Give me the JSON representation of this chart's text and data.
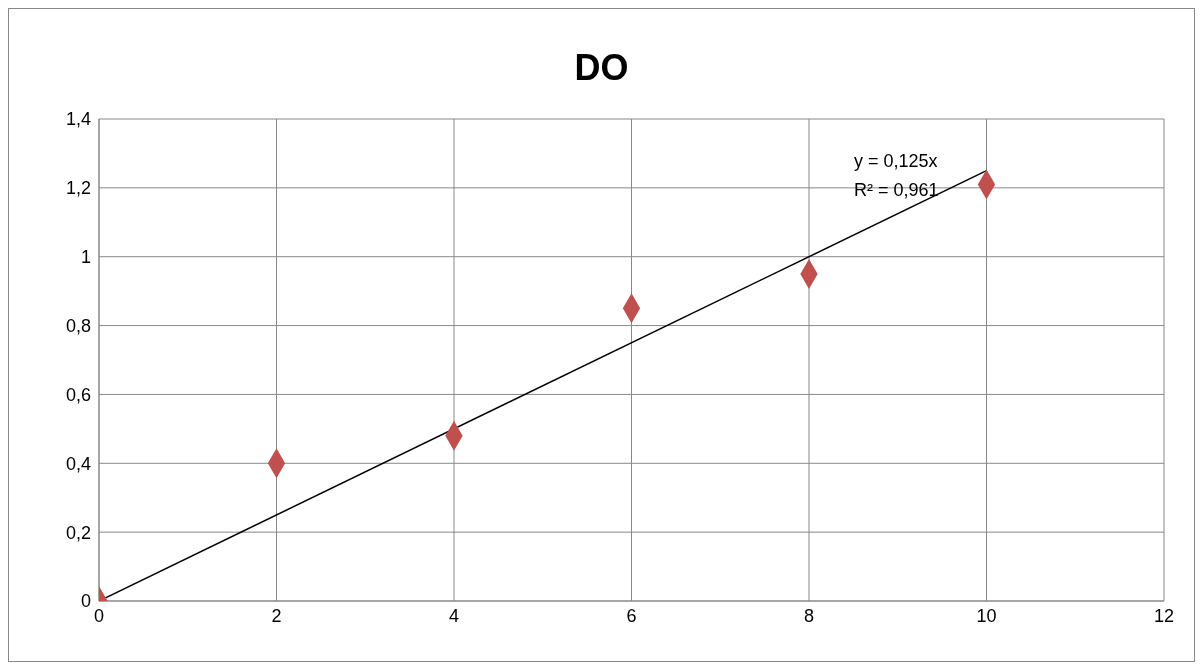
{
  "chart_data": {
    "type": "scatter",
    "title": "DO",
    "series": [
      {
        "color": "#c0504d",
        "marker": "diamond",
        "x": [
          0,
          2,
          4,
          6,
          8,
          10
        ],
        "values": [
          0,
          0.4,
          0.48,
          0.85,
          0.95,
          1.21
        ]
      },
      {
        "type": "line",
        "color": "#000000",
        "marker": "none",
        "line_style": "solid",
        "x": [
          0,
          10
        ],
        "values": [
          0,
          1.25
        ]
      }
    ],
    "xlim": [
      0,
      12
    ],
    "xticks": [
      0,
      2,
      4,
      6,
      8,
      10,
      12
    ],
    "ylim": [
      0,
      1.4
    ],
    "yticks": [
      0,
      {
        "value": 0.2,
        "label": "0,2"
      },
      {
        "value": 0.4,
        "label": "0,4"
      },
      {
        "value": 0.6,
        "label": "0,6"
      },
      {
        "value": 0.8,
        "label": "0,8"
      },
      1,
      {
        "value": 1.2,
        "label": "1,2"
      },
      {
        "value": 1.4,
        "label": "1,4"
      }
    ],
    "grid": true,
    "annotations": [
      "y = 0,125x",
      "R² = 0,961"
    ]
  }
}
